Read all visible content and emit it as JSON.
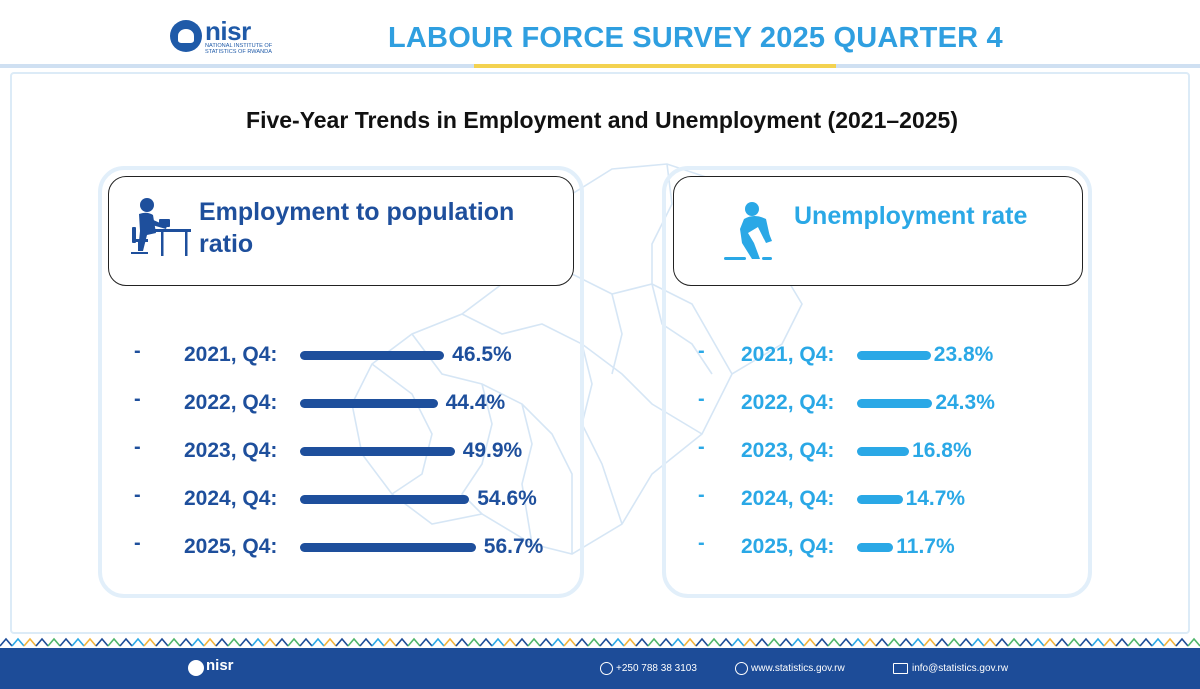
{
  "header": {
    "logo_text": "nisr",
    "logo_subtext": "National Institute of Statistics of Rwanda",
    "title": "LABOUR FORCE SURVEY 2025 QUARTER 4"
  },
  "colors": {
    "employment": "#1e4f9c",
    "unemployment": "#2aa8e6",
    "footer": "#1d4c98"
  },
  "chart_data": [
    {
      "type": "bar",
      "title": "Five-Year Trends in Employment and Unemployment (2021–2025)",
      "panel_title": "Employment to population ratio",
      "categories": [
        "2021, Q4:",
        "2022, Q4:",
        "2023, Q4:",
        "2024, Q4:",
        "2025, Q4:"
      ],
      "values": [
        46.5,
        44.4,
        49.9,
        54.6,
        56.7
      ],
      "value_labels": [
        "46.5%",
        "44.4%",
        "49.9%",
        "54.6%",
        "56.7%"
      ],
      "orientation": "horizontal",
      "icon": "person-at-desk-icon"
    },
    {
      "type": "bar",
      "panel_title": "Unemployment rate",
      "categories": [
        "2021, Q4:",
        "2022, Q4:",
        "2023, Q4:",
        "2024, Q4:",
        "2025, Q4:"
      ],
      "values": [
        23.8,
        24.3,
        16.8,
        14.7,
        11.7
      ],
      "value_labels": [
        "23.8%",
        "24.3%",
        "16.8%",
        "14.7%",
        "11.7%"
      ],
      "orientation": "horizontal",
      "icon": "sad-person-sitting-icon"
    }
  ],
  "footer": {
    "logo_text": "nisr",
    "phone": "+250 788 38 3103",
    "website": "www.statistics.gov.rw",
    "email": "info@statistics.gov.rw",
    "phone_icon": "phone-icon",
    "website_icon": "globe-icon",
    "email_icon": "envelope-icon"
  }
}
